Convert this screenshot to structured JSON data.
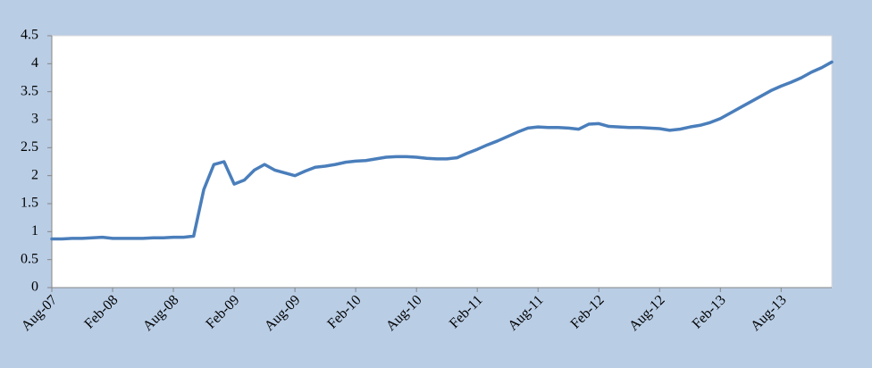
{
  "chart_data": {
    "type": "line",
    "color": "#4a7ebb",
    "categories": [
      "Aug-07",
      null,
      null,
      null,
      null,
      null,
      "Feb-08",
      null,
      null,
      null,
      null,
      null,
      "Aug-08",
      null,
      null,
      null,
      null,
      null,
      "Feb-09",
      null,
      null,
      null,
      null,
      null,
      "Aug-09",
      null,
      null,
      null,
      null,
      null,
      "Feb-10",
      null,
      null,
      null,
      null,
      null,
      "Aug-10",
      null,
      null,
      null,
      null,
      null,
      "Feb-11",
      null,
      null,
      null,
      null,
      null,
      "Aug-11",
      null,
      null,
      null,
      null,
      null,
      "Feb-12",
      null,
      null,
      null,
      null,
      null,
      "Aug-12",
      null,
      null,
      null,
      null,
      null,
      "Feb-13",
      null,
      null,
      null,
      null,
      null,
      "Aug-13",
      null,
      null,
      null,
      null,
      null
    ],
    "values": [
      0.87,
      0.87,
      0.88,
      0.88,
      0.89,
      0.9,
      0.88,
      0.88,
      0.88,
      0.88,
      0.89,
      0.89,
      0.9,
      0.9,
      0.92,
      1.75,
      2.2,
      2.25,
      1.85,
      1.92,
      2.1,
      2.2,
      2.1,
      2.05,
      2.0,
      2.08,
      2.15,
      2.17,
      2.2,
      2.24,
      2.26,
      2.27,
      2.3,
      2.33,
      2.34,
      2.34,
      2.33,
      2.31,
      2.3,
      2.3,
      2.32,
      2.4,
      2.47,
      2.55,
      2.62,
      2.7,
      2.78,
      2.85,
      2.87,
      2.86,
      2.86,
      2.85,
      2.83,
      2.92,
      2.93,
      2.88,
      2.87,
      2.86,
      2.86,
      2.85,
      2.84,
      2.81,
      2.83,
      2.87,
      2.9,
      2.95,
      3.02,
      3.12,
      3.22,
      3.32,
      3.42,
      3.52,
      3.6,
      3.67,
      3.75,
      3.85,
      3.93,
      4.03
    ],
    "ylim": [
      0,
      4.5
    ],
    "yticks": [
      0,
      0.5,
      1,
      1.5,
      2,
      2.5,
      3,
      3.5,
      4,
      4.5
    ],
    "grid": false
  }
}
